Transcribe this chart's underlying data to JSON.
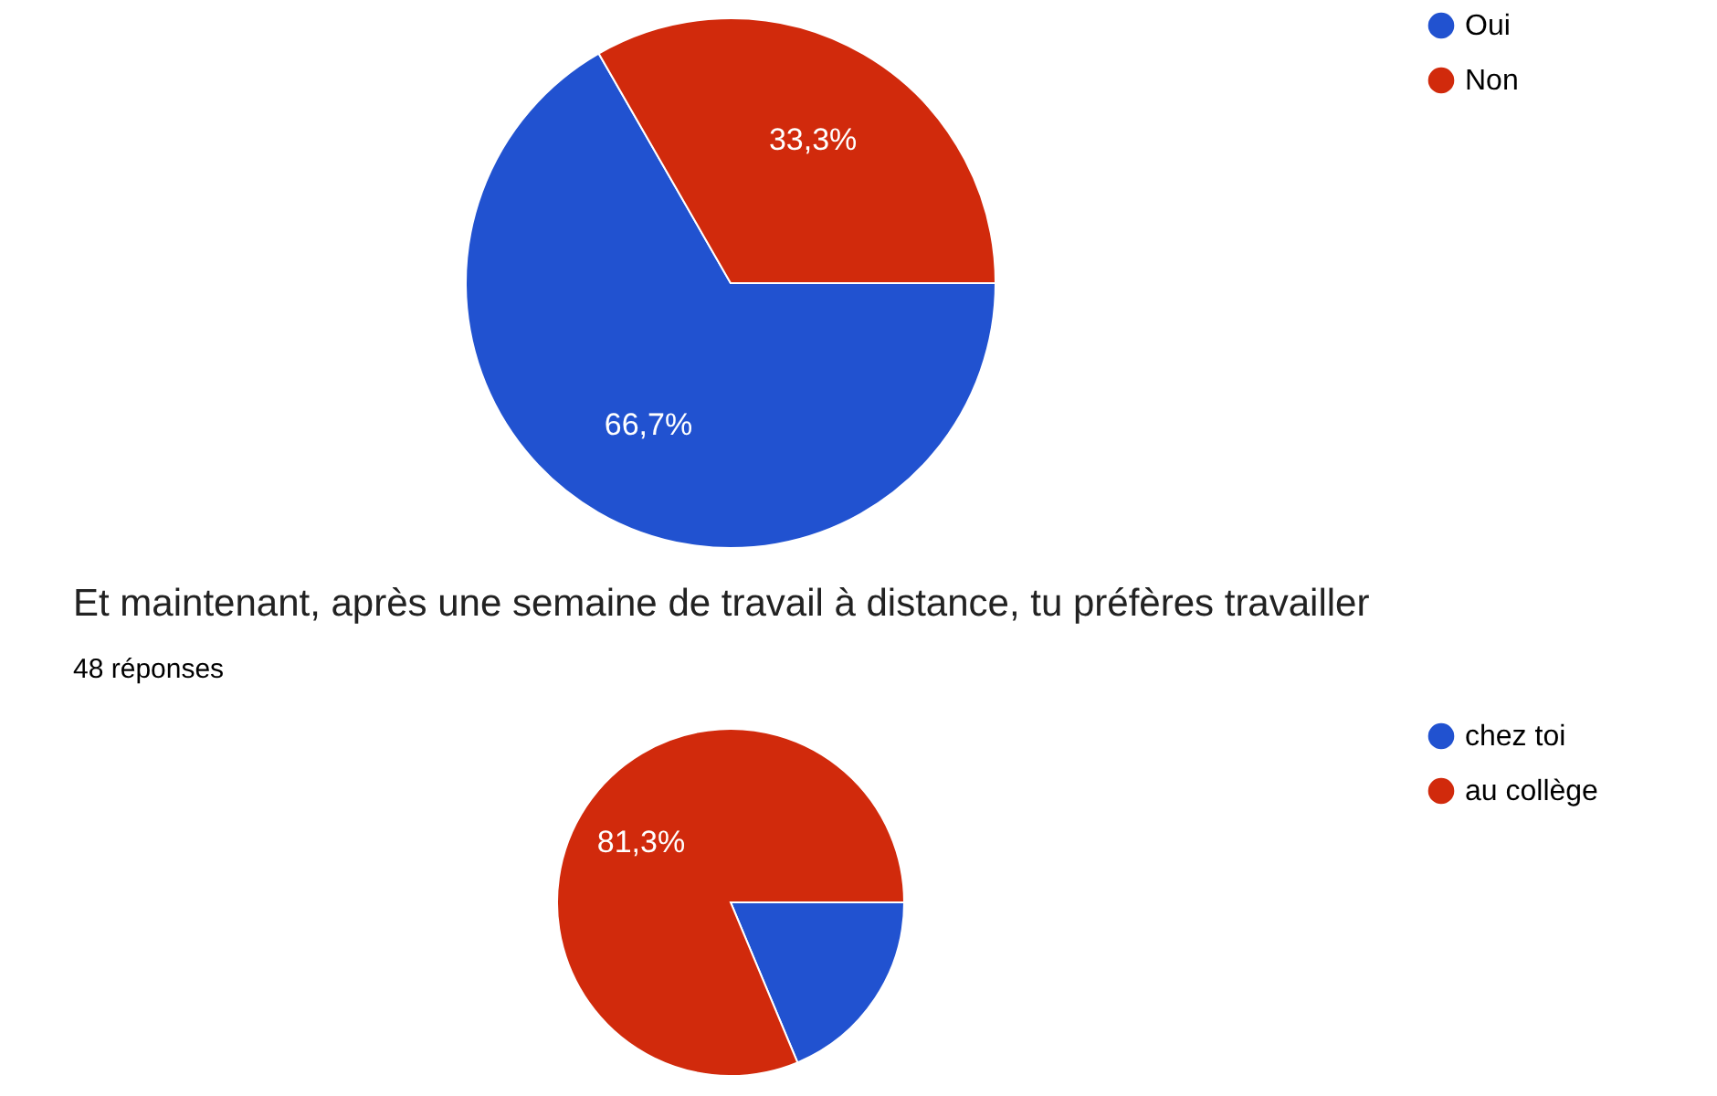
{
  "chart_data": [
    {
      "type": "pie",
      "categories": [
        "Oui",
        "Non"
      ],
      "values": [
        66.7,
        33.3
      ],
      "colors": [
        "#2152d0",
        "#d12a0c"
      ],
      "value_labels": [
        "66,7%",
        "33,3%"
      ],
      "legend": "top right"
    },
    {
      "type": "pie",
      "title": "Et maintenant, après une semaine de travail à distance, tu préfères travailler",
      "subtitle": "48 réponses",
      "categories": [
        "chez toi",
        "au collège"
      ],
      "values": [
        18.7,
        81.3
      ],
      "colors": [
        "#2152d0",
        "#d12a0c"
      ],
      "value_labels": [
        null,
        "81,3%"
      ],
      "legend": "top right"
    }
  ]
}
